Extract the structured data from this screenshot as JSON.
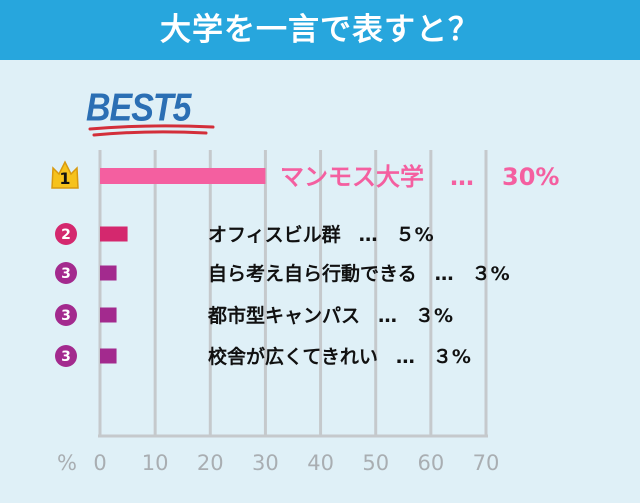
{
  "header": {
    "title": "大学を一言で表すと？"
  },
  "best_label": "BEST5",
  "colors": {
    "header_bg": "#27a6dd",
    "panel_bg": "#dff0f7",
    "best_text": "#2b6fb4",
    "underline": "#d32f3a",
    "axis": "#c5c9cc",
    "tick_text": "#a9aeb2",
    "crown": "#f6c21c"
  },
  "chart_data": {
    "type": "bar",
    "orientation": "horizontal",
    "xlabel": "%",
    "xlim": [
      0,
      70
    ],
    "xticks": [
      "0",
      "10",
      "20",
      "30",
      "40",
      "50",
      "60",
      "70"
    ],
    "grid": true,
    "bars": [
      {
        "rank": "1",
        "label": "マンモス大学",
        "sep": "…",
        "value_text": "30%",
        "value": 30,
        "color": "#f45fa0",
        "label_color": "#f45fa0"
      },
      {
        "rank": "2",
        "label": "オフィスビル群",
        "sep": "…",
        "value_text": "５%",
        "value": 5,
        "color": "#d4286e",
        "label_color": "#111111"
      },
      {
        "rank": "3",
        "label": "自ら考え自ら行動できる",
        "sep": "…",
        "value_text": "３%",
        "value": 3,
        "color": "#a32a8e",
        "label_color": "#111111"
      },
      {
        "rank": "3",
        "label": "都市型キャンパス",
        "sep": "…",
        "value_text": "３%",
        "value": 3,
        "color": "#a32a8e",
        "label_color": "#111111"
      },
      {
        "rank": "3",
        "label": "校舎が広くてきれい",
        "sep": "…",
        "value_text": "３%",
        "value": 3,
        "color": "#a32a8e",
        "label_color": "#111111"
      }
    ]
  }
}
